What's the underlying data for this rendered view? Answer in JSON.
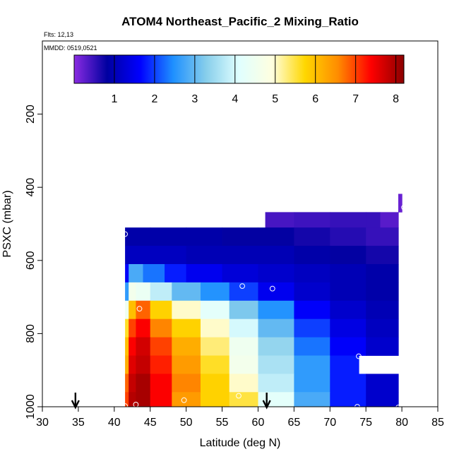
{
  "chart_data": {
    "type": "heatmap",
    "title": "ATOM4 Northeast_Pacific_2 Mixing_Ratio",
    "subtitle_flights": "Flts: 12,13",
    "subtitle_dates": "MMDD: 0519,0521",
    "xlabel": "Latitude (deg N)",
    "ylabel": "PSXC (mbar)",
    "xlim": [
      30,
      85
    ],
    "ylim": [
      0,
      1000
    ],
    "y_reversed": true,
    "x_ticks": [
      30,
      35,
      40,
      45,
      50,
      55,
      60,
      65,
      70,
      75,
      80,
      85
    ],
    "y_ticks": [
      200,
      400,
      600,
      800,
      1000
    ],
    "colorbar": {
      "range": [
        0,
        8.2
      ],
      "ticks": [
        1,
        2,
        3,
        4,
        5,
        6,
        7,
        8
      ],
      "colors": [
        "#8a2be2",
        "#0000a0",
        "#0000ff",
        "#1e90ff",
        "#87ceeb",
        "#e0ffff",
        "#ffffe0",
        "#ffd700",
        "#ff8c00",
        "#ff0000",
        "#8b0000"
      ]
    },
    "layers": [
      {
        "p_top": 418,
        "p_bot": 468,
        "x": [
          79.5,
          80.0
        ],
        "v": [
          0.2
        ]
      },
      {
        "p_top": 468,
        "p_bot": 510,
        "x": [
          61.0,
          65.0,
          70.0,
          75.0,
          77.0,
          79.5
        ],
        "v": [
          0.4,
          0.45,
          0.5,
          0.5,
          0.3
        ]
      },
      {
        "p_top": 510,
        "p_bot": 560,
        "x": [
          41.5,
          45.0,
          50.0,
          55.0,
          60.0,
          65.0,
          70.0,
          75.0,
          79.5
        ],
        "v": [
          0.9,
          0.9,
          0.9,
          0.8,
          0.8,
          0.7,
          0.6,
          0.5
        ]
      },
      {
        "p_top": 560,
        "p_bot": 610,
        "x": [
          41.5,
          45.0,
          50.0,
          55.0,
          60.0,
          65.0,
          70.0,
          75.0,
          79.5
        ],
        "v": [
          1.1,
          1.1,
          1.0,
          1.0,
          1.0,
          0.9,
          0.8,
          0.7
        ]
      },
      {
        "p_top": 610,
        "p_bot": 660,
        "x": [
          41.5,
          42.0,
          44.0,
          47.0,
          50.0,
          55.0,
          60.0,
          65.0,
          70.0,
          75.0,
          79.5
        ],
        "v": [
          1.6,
          2.8,
          2.3,
          1.8,
          1.5,
          1.3,
          1.2,
          1.1,
          1.0,
          0.9
        ]
      },
      {
        "p_top": 660,
        "p_bot": 710,
        "x": [
          41.5,
          42.0,
          43.0,
          45.0,
          48.0,
          52.0,
          56.0,
          60.0,
          65.0,
          70.0,
          75.0,
          79.5
        ],
        "v": [
          2.6,
          4.6,
          4.4,
          3.8,
          3.0,
          2.5,
          2.0,
          1.5,
          1.2,
          1.0,
          0.9
        ]
      },
      {
        "p_top": 710,
        "p_bot": 760,
        "x": [
          41.5,
          42.0,
          43.0,
          45.0,
          48.0,
          52.0,
          56.0,
          60.0,
          65.0,
          70.0,
          75.0,
          79.5
        ],
        "v": [
          4.5,
          6.0,
          6.8,
          5.8,
          5.0,
          4.2,
          3.2,
          2.5,
          1.6,
          1.2,
          1.0
        ]
      },
      {
        "p_top": 760,
        "p_bot": 810,
        "x": [
          41.5,
          42.0,
          43.0,
          45.0,
          48.0,
          52.0,
          56.0,
          60.0,
          65.0,
          70.0,
          75.0,
          79.5
        ],
        "v": [
          5.6,
          7.0,
          7.4,
          6.6,
          5.8,
          5.0,
          4.0,
          3.0,
          2.0,
          1.4,
          1.1
        ]
      },
      {
        "p_top": 810,
        "p_bot": 860,
        "x": [
          41.5,
          42.0,
          43.0,
          45.0,
          48.0,
          52.0,
          56.0,
          60.0,
          65.0,
          70.0,
          75.0,
          79.5
        ],
        "v": [
          6.0,
          7.4,
          7.7,
          7.0,
          6.2,
          5.3,
          4.5,
          3.4,
          2.3,
          1.6,
          1.2
        ]
      },
      {
        "p_top": 860,
        "p_bot": 910,
        "x": [
          41.5,
          42.0,
          43.0,
          45.0,
          48.0,
          52.0,
          56.0,
          60.0,
          65.0,
          70.0,
          74.0
        ],
        "v": [
          6.2,
          7.6,
          7.8,
          7.2,
          6.4,
          5.6,
          4.6,
          3.6,
          2.6,
          1.8
        ]
      },
      {
        "p_top": 910,
        "p_bot": 960,
        "x": [
          41.5,
          42.0,
          43.0,
          45.0,
          48.0,
          52.0,
          56.0,
          60.0,
          65.0,
          70.0,
          75.0,
          79.5
        ],
        "v": [
          6.8,
          7.8,
          8.0,
          7.4,
          6.6,
          5.8,
          5.0,
          3.8,
          2.6,
          1.8,
          1.2
        ]
      },
      {
        "p_top": 960,
        "p_bot": 1010,
        "x": [
          41.5,
          42.0,
          43.0,
          45.0,
          48.0,
          52.0,
          56.0,
          60.0,
          65.0,
          70.0,
          75.0,
          79.5
        ],
        "v": [
          7.0,
          7.9,
          8.0,
          7.4,
          6.4,
          5.8,
          5.5,
          4.2,
          2.8,
          1.8,
          1.2
        ]
      }
    ],
    "sample_points": [
      {
        "lat": 41.5,
        "p": 528
      },
      {
        "lat": 80.3,
        "p": 455
      },
      {
        "lat": 57.8,
        "p": 670
      },
      {
        "lat": 62.0,
        "p": 677
      },
      {
        "lat": 80.0,
        "p": 702
      },
      {
        "lat": 43.5,
        "p": 732
      },
      {
        "lat": 74.0,
        "p": 862
      },
      {
        "lat": 49.7,
        "p": 982
      },
      {
        "lat": 57.3,
        "p": 970
      },
      {
        "lat": 41.5,
        "p": 998
      },
      {
        "lat": 43.0,
        "p": 994
      },
      {
        "lat": 73.8,
        "p": 1000
      },
      {
        "lat": 79.5,
        "p": 1002
      }
    ],
    "markers": [
      {
        "lat": 34.6,
        "label": "down-arrow"
      },
      {
        "lat": 61.2,
        "label": "down-arrow"
      }
    ]
  }
}
